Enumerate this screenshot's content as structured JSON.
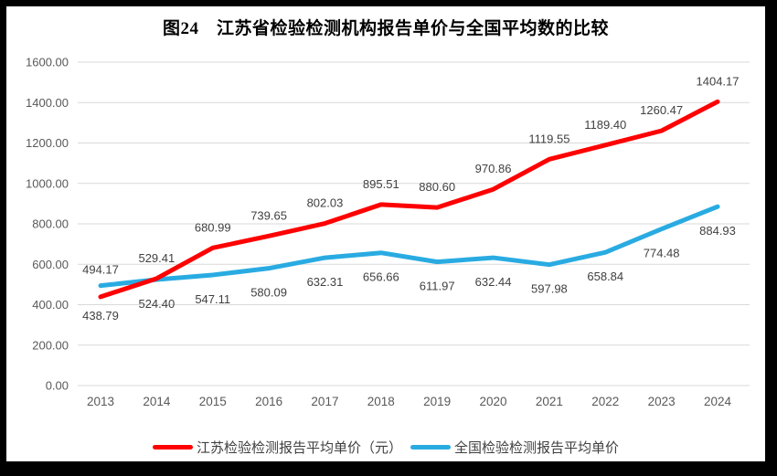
{
  "frame": {
    "surround_color": "#000000",
    "page_color": "#ffffff"
  },
  "chart_data": {
    "type": "line",
    "title": "图24　江苏省检验检测机构报告单价与全国平均数的比较",
    "categories": [
      "2013",
      "2014",
      "2015",
      "2016",
      "2017",
      "2018",
      "2019",
      "2020",
      "2021",
      "2022",
      "2023",
      "2024"
    ],
    "series": [
      {
        "name": "江苏检验检测报告平均单价（元）",
        "color": "#FF0000",
        "values": [
          438.79,
          529.41,
          680.99,
          739.65,
          802.03,
          895.51,
          880.6,
          970.86,
          1119.55,
          1189.4,
          1260.47,
          1404.17
        ],
        "labels": [
          "438.79",
          "529.41",
          "680.99",
          "739.65",
          "802.03",
          "895.51",
          "880.60",
          "970.86",
          "1119.55",
          "1189.40",
          "1260.47",
          "1404.17"
        ],
        "label_position": "above points (first point below)"
      },
      {
        "name": "全国检验检测报告平均单价",
        "color": "#29ABE2",
        "values": [
          494.17,
          524.4,
          547.11,
          580.09,
          632.31,
          656.66,
          611.97,
          632.44,
          597.98,
          658.84,
          774.48,
          884.93
        ],
        "labels": [
          "494.17",
          "524.40",
          "547.11",
          "580.09",
          "632.31",
          "656.66",
          "611.97",
          "632.44",
          "597.98",
          "658.84",
          "774.48",
          "884.93"
        ],
        "label_position": "below points (first point above)"
      }
    ],
    "ylim": [
      0,
      1600
    ],
    "ytick_step": 200,
    "ytick_labels": [
      "0.00",
      "200.00",
      "400.00",
      "600.00",
      "800.00",
      "1000.00",
      "1200.00",
      "1400.00",
      "1600.00"
    ],
    "grid": "horizontal",
    "legend_position": "bottom",
    "styles": {
      "grid_color": "#D9D9D9",
      "tick_label_color": "#595959",
      "data_label_color": "#404040",
      "line_width": 5
    }
  }
}
